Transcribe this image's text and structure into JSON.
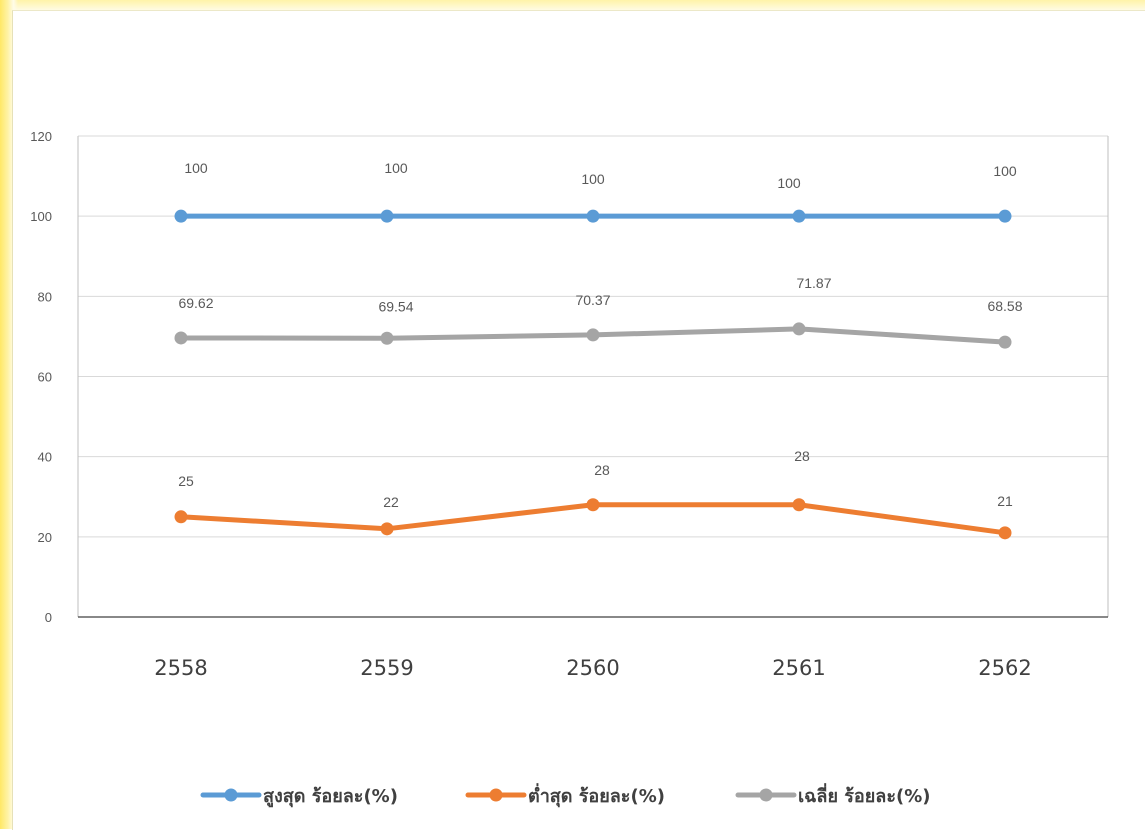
{
  "chart_data": {
    "type": "line",
    "categories": [
      "2558",
      "2559",
      "2560",
      "2561",
      "2562"
    ],
    "ylim": [
      0,
      120
    ],
    "y_ticks": [
      0,
      20,
      40,
      60,
      80,
      100,
      120
    ],
    "grid": true,
    "legend_position": "bottom",
    "series": [
      {
        "name": "สูงสุด ร้อยละ(%)",
        "color": "#5b9bd5",
        "values": [
          100,
          100,
          100,
          100,
          100
        ]
      },
      {
        "name": "ต่ำสุด ร้อยละ(%)",
        "color": "#ed7d31",
        "values": [
          25,
          22,
          28,
          28,
          21
        ]
      },
      {
        "name": "เฉลี่ย ร้อยละ(%)",
        "color": "#a5a5a5",
        "values": [
          69.62,
          69.54,
          70.37,
          71.87,
          68.58
        ]
      }
    ]
  }
}
